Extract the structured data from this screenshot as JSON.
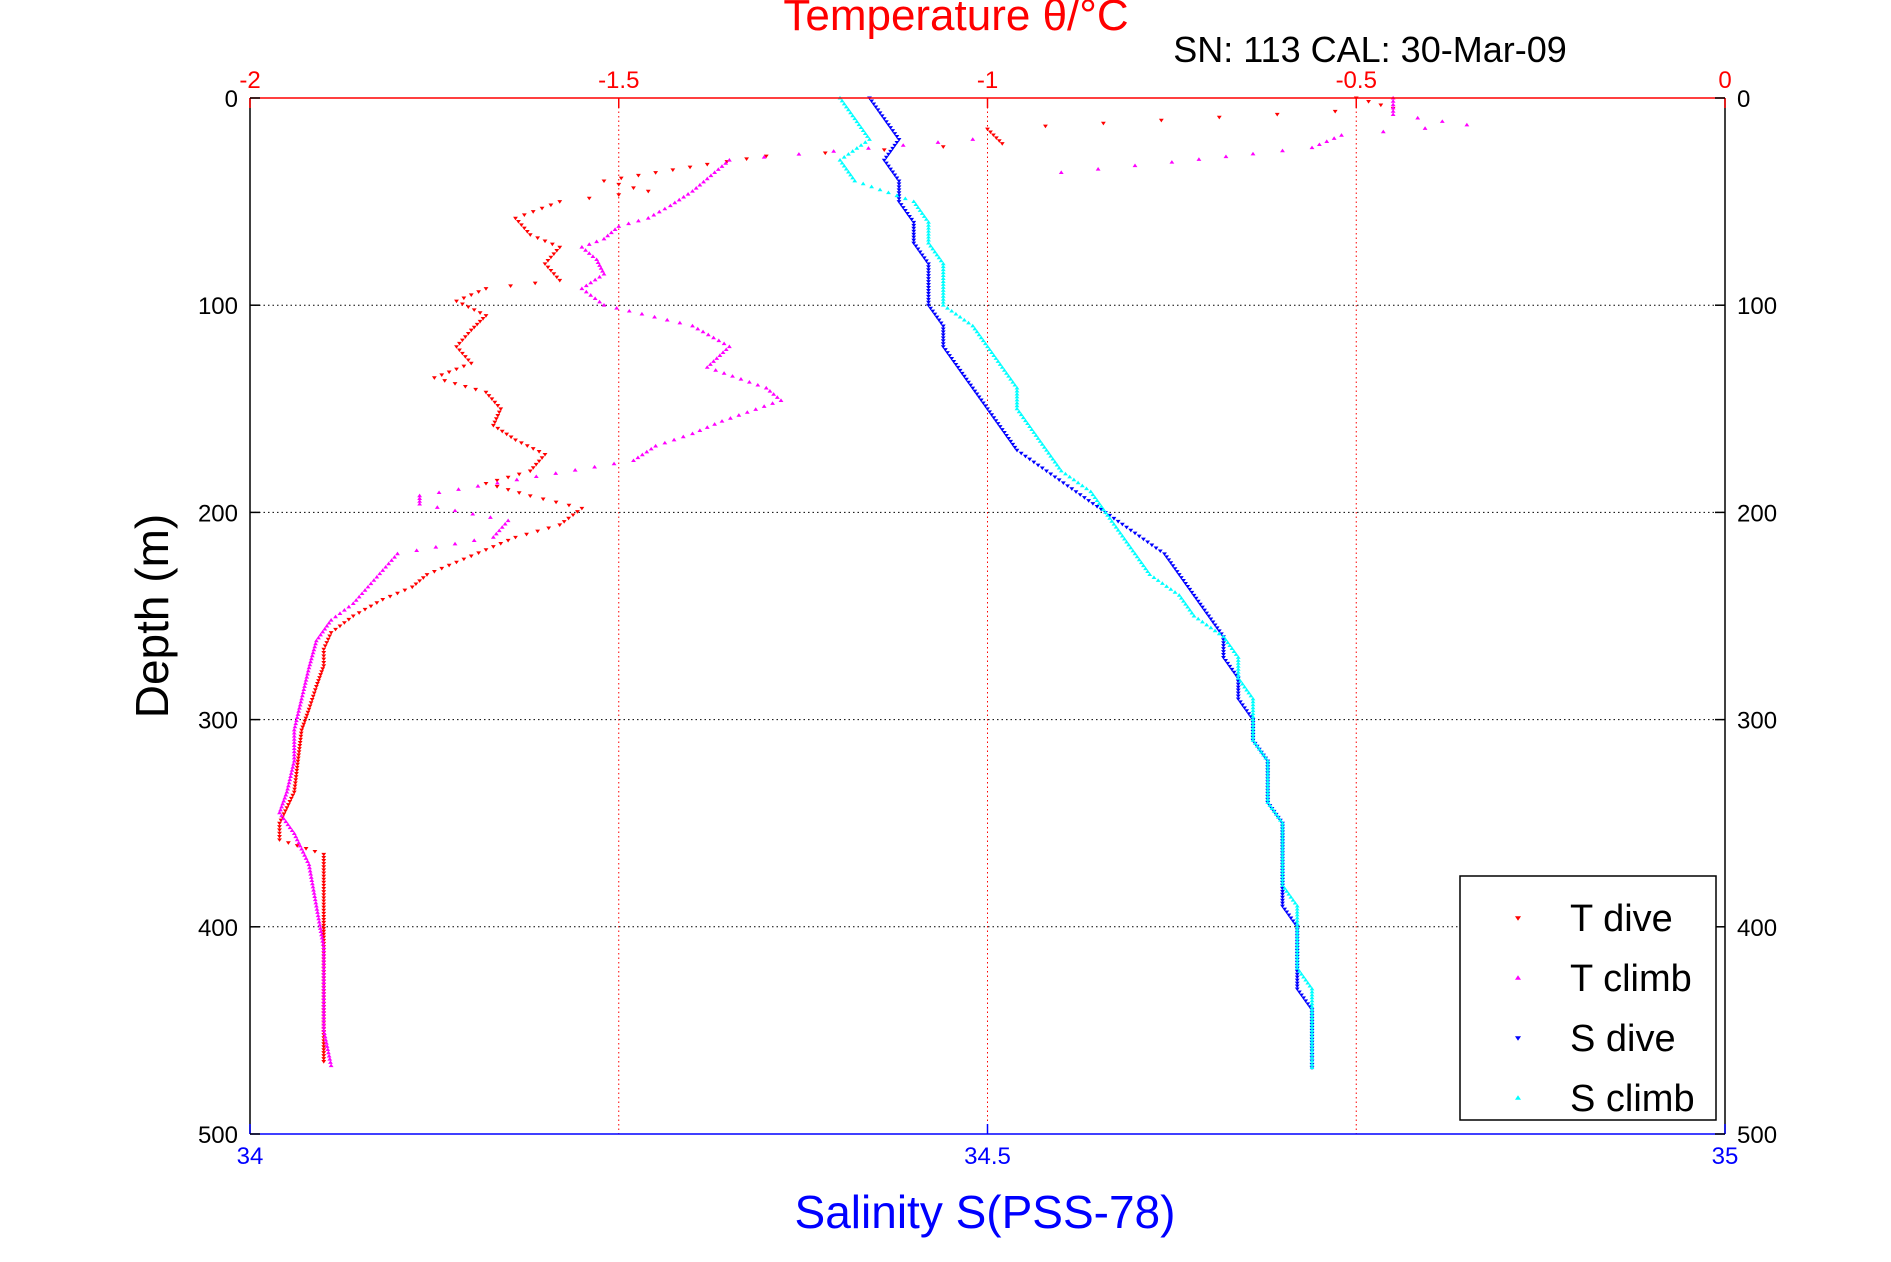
{
  "chart_data": {
    "type": "scatter",
    "title": "Temperature θ/°C",
    "subtitle": "SN: 113  CAL: 30-Mar-09",
    "xlabel_top": "Temperature θ/°C",
    "xlabel_bottom": "Salinity S(PSS-78)",
    "ylabel": "Depth (m)",
    "y_reversed": true,
    "ylim": [
      0,
      500
    ],
    "xlim_temperature": [
      -2,
      0
    ],
    "xlim_salinity": [
      34,
      35
    ],
    "temperature_ticks": [
      "-2",
      "-1.5",
      "-1",
      "-0.5",
      "0"
    ],
    "salinity_ticks": [
      "34",
      "34.5",
      "35"
    ],
    "depth_ticks": [
      "0",
      "100",
      "200",
      "300",
      "400",
      "500"
    ],
    "grid": true,
    "legend_position": "bottom-right",
    "series": [
      {
        "name": "T dive",
        "axis": "temperature",
        "color": "#ff0000",
        "marker": "triangle-down",
        "points": [
          [
            -0.5,
            0
          ],
          [
            -0.45,
            5
          ],
          [
            -1.0,
            15
          ],
          [
            -0.98,
            22
          ],
          [
            -1.3,
            28
          ],
          [
            -1.38,
            32
          ],
          [
            -1.45,
            36
          ],
          [
            -1.52,
            40
          ],
          [
            -1.46,
            45
          ],
          [
            -1.58,
            50
          ],
          [
            -1.64,
            58
          ],
          [
            -1.62,
            66
          ],
          [
            -1.58,
            72
          ],
          [
            -1.6,
            80
          ],
          [
            -1.58,
            88
          ],
          [
            -1.68,
            92
          ],
          [
            -1.72,
            98
          ],
          [
            -1.68,
            105
          ],
          [
            -1.7,
            112
          ],
          [
            -1.72,
            120
          ],
          [
            -1.7,
            128
          ],
          [
            -1.75,
            135
          ],
          [
            -1.68,
            142
          ],
          [
            -1.66,
            150
          ],
          [
            -1.67,
            158
          ],
          [
            -1.64,
            165
          ],
          [
            -1.6,
            172
          ],
          [
            -1.62,
            180
          ],
          [
            -1.68,
            186
          ],
          [
            -1.62,
            192
          ],
          [
            -1.55,
            198
          ],
          [
            -1.58,
            206
          ],
          [
            -1.64,
            212
          ],
          [
            -1.68,
            218
          ],
          [
            -1.72,
            224
          ],
          [
            -1.76,
            230
          ],
          [
            -1.78,
            236
          ],
          [
            -1.82,
            242
          ],
          [
            -1.86,
            250
          ],
          [
            -1.89,
            258
          ],
          [
            -1.9,
            266
          ],
          [
            -1.9,
            274
          ],
          [
            -1.91,
            284
          ],
          [
            -1.92,
            295
          ],
          [
            -1.93,
            305
          ],
          [
            -1.935,
            320
          ],
          [
            -1.94,
            335
          ],
          [
            -1.96,
            350
          ],
          [
            -1.96,
            358
          ],
          [
            -1.9,
            365
          ],
          [
            -1.9,
            380
          ],
          [
            -1.9,
            395
          ],
          [
            -1.9,
            405
          ],
          [
            -1.9,
            420
          ],
          [
            -1.9,
            440
          ],
          [
            -1.9,
            455
          ],
          [
            -1.9,
            465
          ]
        ]
      },
      {
        "name": "T climb",
        "axis": "temperature",
        "color": "#ff00ff",
        "marker": "triangle-up",
        "points": [
          [
            -0.45,
            0
          ],
          [
            -0.45,
            8
          ],
          [
            -0.35,
            13
          ],
          [
            -0.52,
            18
          ],
          [
            -0.56,
            24
          ],
          [
            -0.64,
            27
          ],
          [
            -0.75,
            31
          ],
          [
            -0.9,
            36
          ],
          [
            -1.02,
            20
          ],
          [
            -1.35,
            30
          ],
          [
            -1.4,
            45
          ],
          [
            -1.43,
            52
          ],
          [
            -1.46,
            58
          ],
          [
            -1.5,
            62
          ],
          [
            -1.52,
            68
          ],
          [
            -1.55,
            72
          ],
          [
            -1.53,
            78
          ],
          [
            -1.52,
            85
          ],
          [
            -1.55,
            92
          ],
          [
            -1.52,
            100
          ],
          [
            -1.4,
            110
          ],
          [
            -1.35,
            120
          ],
          [
            -1.38,
            130
          ],
          [
            -1.3,
            140
          ],
          [
            -1.28,
            146
          ],
          [
            -1.36,
            156
          ],
          [
            -1.4,
            162
          ],
          [
            -1.45,
            168
          ],
          [
            -1.48,
            175
          ],
          [
            -1.77,
            192
          ],
          [
            -1.77,
            196
          ],
          [
            -1.65,
            204
          ],
          [
            -1.67,
            212
          ],
          [
            -1.8,
            220
          ],
          [
            -1.82,
            228
          ],
          [
            -1.84,
            236
          ],
          [
            -1.86,
            244
          ],
          [
            -1.89,
            252
          ],
          [
            -1.91,
            262
          ],
          [
            -1.92,
            275
          ],
          [
            -1.93,
            290
          ],
          [
            -1.94,
            305
          ],
          [
            -1.94,
            320
          ],
          [
            -1.95,
            335
          ],
          [
            -1.96,
            345
          ],
          [
            -1.94,
            355
          ],
          [
            -1.92,
            370
          ],
          [
            -1.91,
            390
          ],
          [
            -1.9,
            410
          ],
          [
            -1.9,
            430
          ],
          [
            -1.9,
            450
          ],
          [
            -1.89,
            467
          ]
        ]
      },
      {
        "name": "S dive",
        "axis": "salinity",
        "color": "#0000ff",
        "marker": "triangle-down",
        "points": [
          [
            34.42,
            0
          ],
          [
            34.43,
            10
          ],
          [
            34.44,
            20
          ],
          [
            34.43,
            30
          ],
          [
            34.44,
            40
          ],
          [
            34.44,
            50
          ],
          [
            34.45,
            60
          ],
          [
            34.45,
            70
          ],
          [
            34.46,
            80
          ],
          [
            34.46,
            90
          ],
          [
            34.46,
            100
          ],
          [
            34.47,
            110
          ],
          [
            34.47,
            120
          ],
          [
            34.48,
            130
          ],
          [
            34.49,
            140
          ],
          [
            34.5,
            150
          ],
          [
            34.51,
            160
          ],
          [
            34.52,
            170
          ],
          [
            34.54,
            180
          ],
          [
            34.56,
            190
          ],
          [
            34.58,
            200
          ],
          [
            34.6,
            210
          ],
          [
            34.62,
            220
          ],
          [
            34.63,
            230
          ],
          [
            34.64,
            240
          ],
          [
            34.65,
            250
          ],
          [
            34.66,
            260
          ],
          [
            34.66,
            270
          ],
          [
            34.67,
            280
          ],
          [
            34.67,
            290
          ],
          [
            34.68,
            300
          ],
          [
            34.68,
            310
          ],
          [
            34.69,
            320
          ],
          [
            34.69,
            330
          ],
          [
            34.69,
            340
          ],
          [
            34.7,
            350
          ],
          [
            34.7,
            360
          ],
          [
            34.7,
            370
          ],
          [
            34.7,
            380
          ],
          [
            34.7,
            390
          ],
          [
            34.71,
            400
          ],
          [
            34.71,
            410
          ],
          [
            34.71,
            420
          ],
          [
            34.71,
            430
          ],
          [
            34.72,
            440
          ],
          [
            34.72,
            450
          ],
          [
            34.72,
            460
          ],
          [
            34.72,
            468
          ]
        ]
      },
      {
        "name": "S climb",
        "axis": "salinity",
        "color": "#00ffff",
        "marker": "triangle-up",
        "points": [
          [
            34.4,
            0
          ],
          [
            34.41,
            10
          ],
          [
            34.42,
            20
          ],
          [
            34.4,
            30
          ],
          [
            34.41,
            40
          ],
          [
            34.45,
            50
          ],
          [
            34.46,
            60
          ],
          [
            34.46,
            70
          ],
          [
            34.47,
            80
          ],
          [
            34.47,
            90
          ],
          [
            34.47,
            100
          ],
          [
            34.49,
            110
          ],
          [
            34.5,
            120
          ],
          [
            34.51,
            130
          ],
          [
            34.52,
            140
          ],
          [
            34.52,
            150
          ],
          [
            34.53,
            160
          ],
          [
            34.54,
            170
          ],
          [
            34.55,
            180
          ],
          [
            34.57,
            190
          ],
          [
            34.58,
            200
          ],
          [
            34.59,
            210
          ],
          [
            34.6,
            220
          ],
          [
            34.61,
            230
          ],
          [
            34.63,
            240
          ],
          [
            34.64,
            250
          ],
          [
            34.66,
            260
          ],
          [
            34.67,
            270
          ],
          [
            34.67,
            280
          ],
          [
            34.68,
            290
          ],
          [
            34.68,
            300
          ],
          [
            34.68,
            310
          ],
          [
            34.69,
            320
          ],
          [
            34.69,
            330
          ],
          [
            34.69,
            340
          ],
          [
            34.7,
            350
          ],
          [
            34.7,
            360
          ],
          [
            34.7,
            370
          ],
          [
            34.7,
            380
          ],
          [
            34.71,
            390
          ],
          [
            34.71,
            400
          ],
          [
            34.71,
            410
          ],
          [
            34.71,
            420
          ],
          [
            34.72,
            430
          ],
          [
            34.72,
            440
          ],
          [
            34.72,
            450
          ],
          [
            34.72,
            460
          ],
          [
            34.72,
            468
          ]
        ]
      }
    ]
  }
}
